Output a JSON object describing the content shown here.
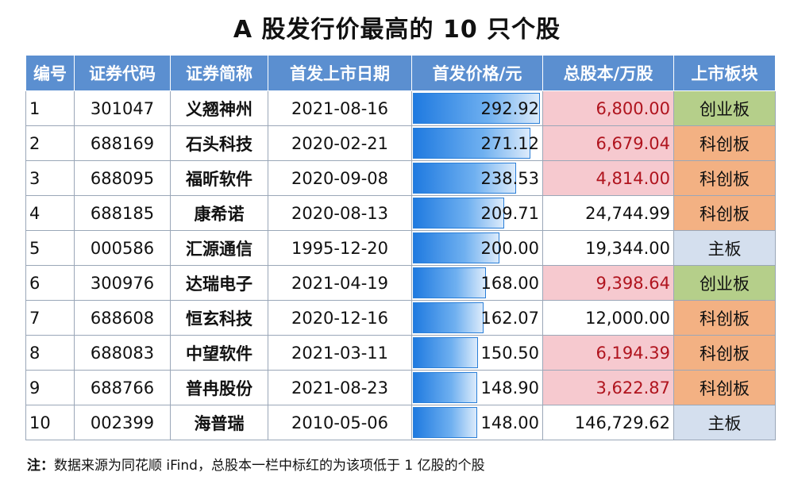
{
  "title": "A 股发行价最高的 10 只个股",
  "columns": [
    "编号",
    "证券代码",
    "证券简称",
    "首发上市日期",
    "首发价格/元",
    "总股本/万股",
    "上市板块"
  ],
  "rows": [
    {
      "idx": "1",
      "code": "301047",
      "name": "义翘神州",
      "date": "2021-08-16",
      "price": "292.92",
      "price_value": 292.92,
      "shares": "6,800.00",
      "low": true,
      "board": "创业板",
      "board_color": "#b5cf8a"
    },
    {
      "idx": "2",
      "code": "688169",
      "name": "石头科技",
      "date": "2020-02-21",
      "price": "271.12",
      "price_value": 271.12,
      "shares": "6,679.04",
      "low": true,
      "board": "科创板",
      "board_color": "#f3b183"
    },
    {
      "idx": "3",
      "code": "688095",
      "name": "福昕软件",
      "date": "2020-09-08",
      "price": "238.53",
      "price_value": 238.53,
      "shares": "4,814.00",
      "low": true,
      "board": "科创板",
      "board_color": "#f3b183"
    },
    {
      "idx": "4",
      "code": "688185",
      "name": "康希诺",
      "date": "2020-08-13",
      "price": "209.71",
      "price_value": 209.71,
      "shares": "24,744.99",
      "low": false,
      "board": "科创板",
      "board_color": "#f3b183"
    },
    {
      "idx": "5",
      "code": "000586",
      "name": "汇源通信",
      "date": "1995-12-20",
      "price": "200.00",
      "price_value": 200.0,
      "shares": "19,344.00",
      "low": false,
      "board": "主板",
      "board_color": "#d4dfee"
    },
    {
      "idx": "6",
      "code": "300976",
      "name": "达瑞电子",
      "date": "2021-04-19",
      "price": "168.00",
      "price_value": 168.0,
      "shares": "9,398.64",
      "low": true,
      "board": "创业板",
      "board_color": "#b5cf8a"
    },
    {
      "idx": "7",
      "code": "688608",
      "name": "恒玄科技",
      "date": "2020-12-16",
      "price": "162.07",
      "price_value": 162.07,
      "shares": "12,000.00",
      "low": false,
      "board": "科创板",
      "board_color": "#f3b183"
    },
    {
      "idx": "8",
      "code": "688083",
      "name": "中望软件",
      "date": "2021-03-11",
      "price": "150.50",
      "price_value": 150.5,
      "shares": "6,194.39",
      "low": true,
      "board": "科创板",
      "board_color": "#f3b183"
    },
    {
      "idx": "9",
      "code": "688766",
      "name": "普冉股份",
      "date": "2021-08-23",
      "price": "148.90",
      "price_value": 148.9,
      "shares": "3,622.87",
      "low": true,
      "board": "科创板",
      "board_color": "#f3b183"
    },
    {
      "idx": "10",
      "code": "002399",
      "name": "海普瑞",
      "date": "2010-05-06",
      "price": "148.00",
      "price_value": 148.0,
      "shares": "146,729.62",
      "low": false,
      "board": "主板",
      "board_color": "#d4dfee"
    }
  ],
  "note": {
    "label": "注：",
    "text": "数据来源为同花顺 iFind，总股本一栏中标红的为该项低于 1 亿股的个股"
  },
  "colors": {
    "header_bg": "#5b8fd0",
    "low_shares_bg": "#f6c9cf",
    "low_shares_text": "#b0141e",
    "bar_color": "#1f7ae0"
  }
}
